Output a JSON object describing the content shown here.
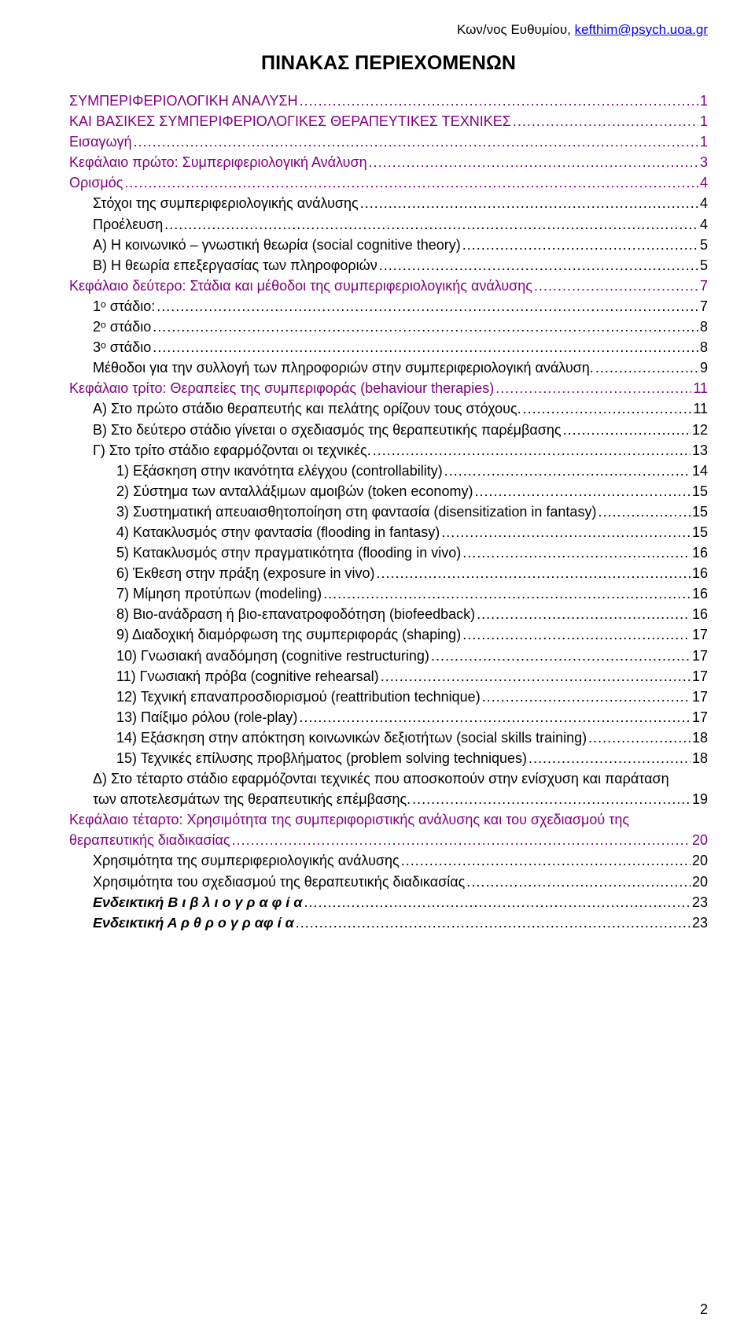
{
  "header": {
    "name": "Κων/νος Ευθυμίου, ",
    "email": "kefthim@psych.uoa.gr"
  },
  "title": "ΠΙΝΑΚΑΣ ΠΕΡΙΕΧΟΜΕΝΩΝ",
  "colors": {
    "purple": "#800080",
    "black": "#000000",
    "link": "#0000ee",
    "bg": "#ffffff"
  },
  "footer": {
    "page": "2"
  },
  "toc": [
    {
      "label": "ΣΥΜΠΕΡΙΦΕΡΙΟΛΟΓΙΚΗ ΑΝΑΛΥΣΗ",
      "page": "1",
      "level": 0,
      "color": "purple"
    },
    {
      "label": "ΚΑΙ ΒΑΣΙΚΕΣ ΣΥΜΠΕΡΙΦΕΡΙΟΛΟΓΙΚΕΣ ΘΕΡΑΠΕΥΤΙΚΕΣ ΤΕΧΝΙΚΕΣ",
      "page": "1",
      "level": 0,
      "color": "purple"
    },
    {
      "label": "Εισαγωγή",
      "page": "1",
      "level": 0,
      "color": "purple"
    },
    {
      "label": "Κεφάλαιο πρώτο: Συμπεριφεριολογική Ανάλυση",
      "page": "3",
      "level": 0,
      "color": "purple"
    },
    {
      "label": "Ορισμός",
      "page": "4",
      "level": 0,
      "color": "purple"
    },
    {
      "label": "Στόχοι της συμπεριφεριολογικής ανάλυσης",
      "page": "4",
      "level": 1,
      "color": "black"
    },
    {
      "label": "Προέλευση",
      "page": "4",
      "level": 1,
      "color": "black"
    },
    {
      "label": "Α) Η κοινωνικό – γνωστική θεωρία (social cognitive theory)",
      "page": "5",
      "level": 1,
      "color": "black"
    },
    {
      "label": "Β) Η θεωρία επεξεργασίας των πληροφοριών",
      "page": "5",
      "level": 1,
      "color": "black"
    },
    {
      "label": "Κεφάλαιο δεύτερο: Στάδια και μέθοδοι της συμπεριφεριολογικής ανάλυσης",
      "page": "7",
      "level": 0,
      "color": "purple"
    },
    {
      "label": "1ᵒ στάδιο:",
      "page": "7",
      "level": 1,
      "color": "black"
    },
    {
      "label": "2ᵒ στάδιο",
      "page": "8",
      "level": 1,
      "color": "black"
    },
    {
      "label": "3ᵒ στάδιο",
      "page": "8",
      "level": 1,
      "color": "black"
    },
    {
      "label": "Μέθοδοι για την συλλογή των πληροφοριών στην συμπεριφεριολογική ανάλυση.",
      "page": "9",
      "level": 1,
      "color": "black"
    },
    {
      "label": "Κεφάλαιο τρίτο: Θεραπείες της συμπεριφοράς (behaviour therapies)",
      "page": "11",
      "level": 0,
      "color": "purple"
    },
    {
      "label": "Α) Στο πρώτο στάδιο θεραπευτής και πελάτης ορίζουν τους στόχους.",
      "page": "11",
      "level": 1,
      "color": "black"
    },
    {
      "label": "Β) Στο δεύτερο στάδιο γίνεται ο σχεδιασμός της θεραπευτικής παρέμβασης",
      "page": "12",
      "level": 1,
      "color": "black"
    },
    {
      "label": "Γ) Στο τρίτο στάδιο εφαρμόζονται οι τεχνικές.",
      "page": "13",
      "level": 1,
      "color": "black"
    },
    {
      "label": "1) Εξάσκηση στην ικανότητα ελέγχου (controllability)",
      "page": "14",
      "level": 2,
      "color": "black"
    },
    {
      "label": "2) Σύστημα των ανταλλάξιμων αμοιβών (token economy)",
      "page": "15",
      "level": 2,
      "color": "black"
    },
    {
      "label": "3) Συστηματική απευαισθητοποίηση στη φαντασία (disensitization in fantasy)",
      "page": "15",
      "level": 2,
      "color": "black"
    },
    {
      "label": "4) Κατακλυσμός στην φαντασία (flooding in fantasy)",
      "page": "15",
      "level": 2,
      "color": "black"
    },
    {
      "label": "5) Κατακλυσμός στην πραγματικότητα (flooding in vivo)",
      "page": "16",
      "level": 2,
      "color": "black"
    },
    {
      "label": "6) Έκθεση στην πράξη (exposure in vivo)",
      "page": "16",
      "level": 2,
      "color": "black"
    },
    {
      "label": "7) Μίμηση προτύπων (modeling)",
      "page": "16",
      "level": 2,
      "color": "black"
    },
    {
      "label": "8) Βιο-ανάδραση ή βιο-επανατροφοδότηση (biofeedback)",
      "page": "16",
      "level": 2,
      "color": "black"
    },
    {
      "label": "9) Διαδοχική διαμόρφωση της συμπεριφοράς (shaping)",
      "page": "17",
      "level": 2,
      "color": "black"
    },
    {
      "label": "10) Γνωσιακή αναδόμηση (cognitive restructuring)",
      "page": "17",
      "level": 2,
      "color": "black"
    },
    {
      "label": "11) Γνωσιακή πρόβα (cognitive rehearsal)",
      "page": "17",
      "level": 2,
      "color": "black"
    },
    {
      "label": "12) Τεχνική επαναπροσδιορισμού (reattribution technique)",
      "page": "17",
      "level": 2,
      "color": "black"
    },
    {
      "label": "13) Παίξιμο ρόλου (role-play)",
      "page": "17",
      "level": 2,
      "color": "black"
    },
    {
      "label": "14) Εξάσκηση στην απόκτηση κοινωνικών δεξιοτήτων (social skills training)",
      "page": "18",
      "level": 2,
      "color": "black"
    },
    {
      "label": "15) Τεχνικές επίλυσης προβλήματος (problem solving techniques)",
      "page": "18",
      "level": 2,
      "color": "black"
    },
    {
      "label": "Δ) Στο τέταρτο στάδιο εφαρμόζονται τεχνικές που αποσκοπούν στην ενίσχυση και παράταση των αποτελεσμάτων της θεραπευτικής επέμβασης.",
      "page": "19",
      "level": 1,
      "color": "black"
    },
    {
      "label": "Κεφάλαιο τέταρτο: Χρησιμότητα της συμπεριφοριστικής ανάλυσης και του σχεδιασμού της θεραπευτικής διαδικασίας",
      "page": "20",
      "level": 0,
      "color": "purple"
    },
    {
      "label": "Χρησιμότητα της συμπεριφεριολογικής ανάλυσης",
      "page": "20",
      "level": 1,
      "color": "black"
    },
    {
      "label": "Χρησιμότητα του σχεδιασμού της θεραπευτικής διαδικασίας",
      "page": "20",
      "level": 1,
      "color": "black"
    },
    {
      "label": "Ενδεικτική Β ι β λ ι ο γ ρ α φ ί α",
      "page": "23",
      "level": 1,
      "color": "black",
      "bold": true,
      "italic": true
    },
    {
      "label": "Ενδεικτική Α ρ θ ρ ο γ ρ αφ ί α",
      "page": "23",
      "level": 1,
      "color": "black",
      "bold": true,
      "italic": true
    }
  ]
}
